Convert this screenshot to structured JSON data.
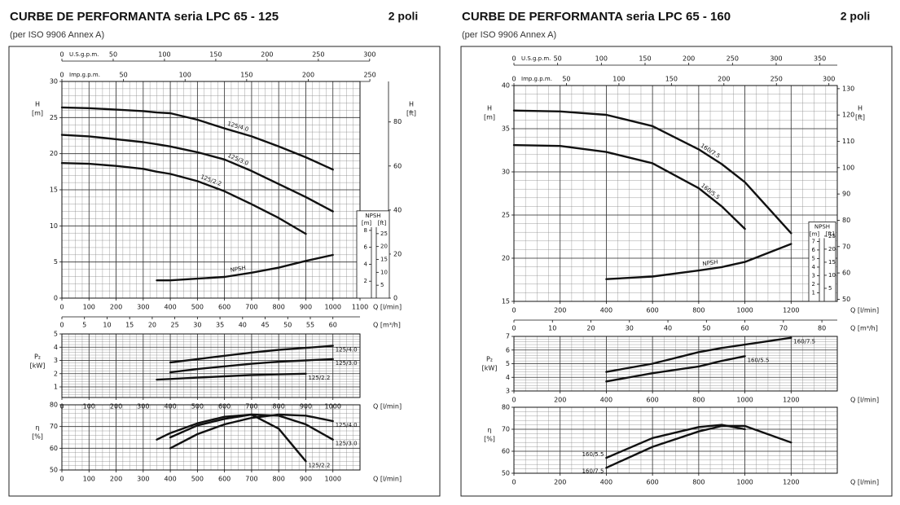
{
  "chart_data": [
    {
      "type": "line",
      "title": "CURBE DE PERFORMANTA seria LPC 65 - 125",
      "subtitle": "(per ISO 9906 Annex A)",
      "annotation": "2 poli",
      "xlabel": "Q [l/min]",
      "ylabel": [
        "H",
        "[m]"
      ],
      "x": [
        0,
        100,
        200,
        300,
        350,
        400,
        500,
        600,
        700,
        800,
        900,
        1000
      ],
      "xlim": [
        0,
        1100
      ],
      "xticks": [
        0,
        100,
        200,
        300,
        400,
        500,
        600,
        700,
        800,
        900,
        1000,
        1100
      ],
      "ylim": [
        0,
        30
      ],
      "yticks": [
        0,
        5,
        10,
        15,
        20,
        25,
        30
      ],
      "y2label": "NPSH",
      "y2unit": "[m]",
      "y2lim": [
        0,
        25.6
      ],
      "y2ticks": [
        2,
        4,
        6,
        8
      ],
      "grid": true,
      "series": [
        {
          "name": "125/4.0",
          "color": "#111111",
          "values": [
            26.4,
            26.3,
            26.1,
            25.9,
            25.7,
            25.6,
            24.7,
            23.5,
            22.4,
            21.0,
            19.5,
            17.8
          ]
        },
        {
          "name": "125/3.0",
          "color": "#111111",
          "values": [
            22.6,
            22.4,
            22.0,
            21.6,
            21.3,
            21.0,
            20.2,
            19.2,
            17.6,
            15.8,
            14.0,
            12.0
          ]
        },
        {
          "name": "125/2.2",
          "color": "#111111",
          "values": [
            18.7,
            18.6,
            18.3,
            17.9,
            17.5,
            17.2,
            16.2,
            14.8,
            13.0,
            11.1,
            8.9,
            null
          ]
        },
        {
          "name": "NPSH",
          "color": "#111111",
          "axis": "y2",
          "values": [
            null,
            null,
            null,
            null,
            2.1,
            2.1,
            2.3,
            2.5,
            3.0,
            3.6,
            4.4,
            5.1
          ]
        }
      ],
      "top_axes": [
        {
          "label": "U.S.g.p.m.",
          "lim": [
            0,
            290.6
          ],
          "ticks": [
            0,
            50,
            100,
            150,
            200,
            250,
            300
          ]
        },
        {
          "label": "Imp.g.p.m.",
          "lim": [
            0,
            242
          ],
          "ticks": [
            0,
            50,
            100,
            150,
            200,
            250
          ]
        }
      ],
      "bottom_axis": {
        "label": "Q [m³/h]",
        "lim": [
          0,
          66
        ],
        "ticks": [
          0,
          5,
          10,
          15,
          20,
          25,
          30,
          35,
          40,
          45,
          50,
          55,
          60
        ]
      },
      "right_axis": {
        "label": [
          "H",
          "[ft]"
        ],
        "lim": [
          0,
          98.4
        ],
        "ticks": [
          0,
          20,
          40,
          60,
          80
        ]
      },
      "npsh_ft_axis": {
        "label": "[ft]",
        "lim": [
          0,
          84
        ],
        "ticks": [
          5,
          10,
          15,
          20,
          25
        ]
      }
    },
    {
      "type": "line",
      "xlabel": "Q [l/min]",
      "ylabel": [
        "P₂",
        "[kW]"
      ],
      "x": [
        0,
        100,
        200,
        300,
        350,
        400,
        500,
        600,
        700,
        800,
        900,
        1000
      ],
      "xlim": [
        0,
        1100
      ],
      "xticks": [
        0,
        100,
        200,
        300,
        400,
        500,
        600,
        700,
        800,
        900,
        1000
      ],
      "ylim": [
        0.2,
        5
      ],
      "yticks": [
        1,
        2,
        3,
        4,
        5
      ],
      "grid": true,
      "series": [
        {
          "name": "125/4.0",
          "color": "#111111",
          "values": [
            null,
            null,
            null,
            null,
            null,
            2.85,
            3.1,
            3.35,
            3.6,
            3.8,
            3.95,
            4.1
          ]
        },
        {
          "name": "125/3.0",
          "color": "#111111",
          "values": [
            null,
            null,
            null,
            null,
            null,
            2.1,
            2.35,
            2.55,
            2.75,
            2.9,
            3.0,
            3.1
          ]
        },
        {
          "name": "125/2.2",
          "color": "#111111",
          "values": [
            null,
            null,
            null,
            null,
            1.55,
            1.6,
            1.7,
            1.8,
            1.9,
            1.95,
            2.0,
            null
          ]
        }
      ]
    },
    {
      "type": "line",
      "xlabel": "Q [l/min]",
      "ylabel": [
        "η",
        "[%]"
      ],
      "x": [
        0,
        100,
        200,
        300,
        350,
        400,
        500,
        600,
        700,
        800,
        900,
        1000
      ],
      "xlim": [
        0,
        1100
      ],
      "xticks": [
        0,
        100,
        200,
        300,
        400,
        500,
        600,
        700,
        800,
        900,
        1000
      ],
      "ylim": [
        50,
        80
      ],
      "yticks": [
        50,
        60,
        70,
        80
      ],
      "grid": true,
      "series": [
        {
          "name": "125/4.0",
          "color": "#111111",
          "values": [
            null,
            null,
            null,
            null,
            null,
            60,
            66.5,
            71,
            74,
            75.5,
            75,
            72.5
          ]
        },
        {
          "name": "125/3.0",
          "color": "#111111",
          "values": [
            null,
            null,
            null,
            null,
            null,
            65,
            70.5,
            73.5,
            75.5,
            75,
            71,
            64
          ]
        },
        {
          "name": "125/2.2",
          "color": "#111111",
          "values": [
            null,
            null,
            null,
            null,
            64,
            67,
            71.5,
            74.5,
            75.5,
            69,
            54,
            null
          ]
        }
      ]
    },
    {
      "type": "line",
      "title": "CURBE DE PERFORMANTA seria LPC 65 - 160",
      "subtitle": "(per ISO 9906 Annex A)",
      "annotation": "2 poli",
      "xlabel": "Q [l/min]",
      "ylabel": [
        "H",
        "[m]"
      ],
      "x": [
        0,
        200,
        400,
        600,
        800,
        900,
        1000,
        1200
      ],
      "xlim": [
        0,
        1400
      ],
      "xticks": [
        0,
        200,
        400,
        600,
        800,
        1000,
        1200
      ],
      "ylim": [
        15,
        40
      ],
      "yticks": [
        15,
        20,
        25,
        30,
        35,
        40
      ],
      "y2label": "NPSH",
      "y2unit": "[m]",
      "y2lim": [
        0,
        25.2
      ],
      "y2ticks": [
        1,
        2,
        3,
        4,
        5,
        6,
        7
      ],
      "grid": true,
      "series": [
        {
          "name": "160/7.5",
          "color": "#111111",
          "values": [
            37.1,
            37.0,
            36.6,
            35.3,
            32.6,
            30.9,
            28.8,
            22.9
          ]
        },
        {
          "name": "160/5.5",
          "color": "#111111",
          "values": [
            33.1,
            33.0,
            32.3,
            31.0,
            28.1,
            26.0,
            23.4,
            null
          ]
        },
        {
          "name": "NPSH",
          "color": "#111111",
          "axis": "y2",
          "values": [
            null,
            null,
            2.6,
            2.9,
            3.6,
            4.0,
            4.6,
            6.7
          ]
        }
      ],
      "top_axes": [
        {
          "label": "U.S.g.p.m.",
          "lim": [
            0,
            369.9
          ],
          "ticks": [
            0,
            50,
            100,
            150,
            200,
            250,
            300,
            350
          ]
        },
        {
          "label": "Imp.g.p.m.",
          "lim": [
            0,
            308
          ],
          "ticks": [
            0,
            50,
            100,
            150,
            200,
            250,
            300
          ]
        }
      ],
      "bottom_axis": {
        "label": "Q [m³/h]",
        "lim": [
          0,
          84
        ],
        "ticks": [
          0,
          10,
          20,
          30,
          40,
          50,
          60,
          70,
          80
        ]
      },
      "right_axis": {
        "label": [
          "H",
          "[ft]"
        ],
        "lim": [
          49.2,
          131.2
        ],
        "ticks": [
          50,
          60,
          70,
          80,
          90,
          100,
          110,
          120,
          130
        ]
      },
      "npsh_ft_axis": {
        "label": "[ft]",
        "lim": [
          0,
          82.7
        ],
        "ticks": [
          5,
          10,
          15,
          20,
          25
        ]
      }
    },
    {
      "type": "line",
      "xlabel": "Q [l/min]",
      "ylabel": [
        "P₂",
        "[kW]"
      ],
      "x": [
        0,
        200,
        400,
        600,
        800,
        900,
        1000,
        1200
      ],
      "xlim": [
        0,
        1400
      ],
      "xticks": [
        0,
        200,
        400,
        600,
        800,
        1000,
        1200
      ],
      "ylim": [
        3,
        7
      ],
      "yticks": [
        3,
        4,
        5,
        6,
        7
      ],
      "grid": true,
      "series": [
        {
          "name": "160/7.5",
          "color": "#111111",
          "values": [
            null,
            null,
            4.4,
            5.0,
            5.85,
            6.15,
            6.4,
            6.9
          ]
        },
        {
          "name": "160/5.5",
          "color": "#111111",
          "values": [
            null,
            null,
            3.7,
            4.3,
            4.8,
            5.2,
            5.55,
            null
          ]
        }
      ]
    },
    {
      "type": "line",
      "xlabel": "Q [l/min]",
      "ylabel": [
        "η",
        "[%]"
      ],
      "x": [
        0,
        200,
        400,
        600,
        800,
        900,
        1000,
        1200
      ],
      "xlim": [
        0,
        1400
      ],
      "xticks": [
        0,
        200,
        400,
        600,
        800,
        1000,
        1200
      ],
      "ylim": [
        50,
        80
      ],
      "yticks": [
        50,
        60,
        70,
        80
      ],
      "grid": true,
      "series": [
        {
          "name": "160/5.5",
          "color": "#111111",
          "values": [
            null,
            null,
            57,
            66,
            71,
            72,
            70,
            null
          ]
        },
        {
          "name": "160/7.5",
          "color": "#111111",
          "values": [
            null,
            null,
            52.5,
            62,
            69,
            71.5,
            71.5,
            64
          ]
        }
      ]
    }
  ]
}
